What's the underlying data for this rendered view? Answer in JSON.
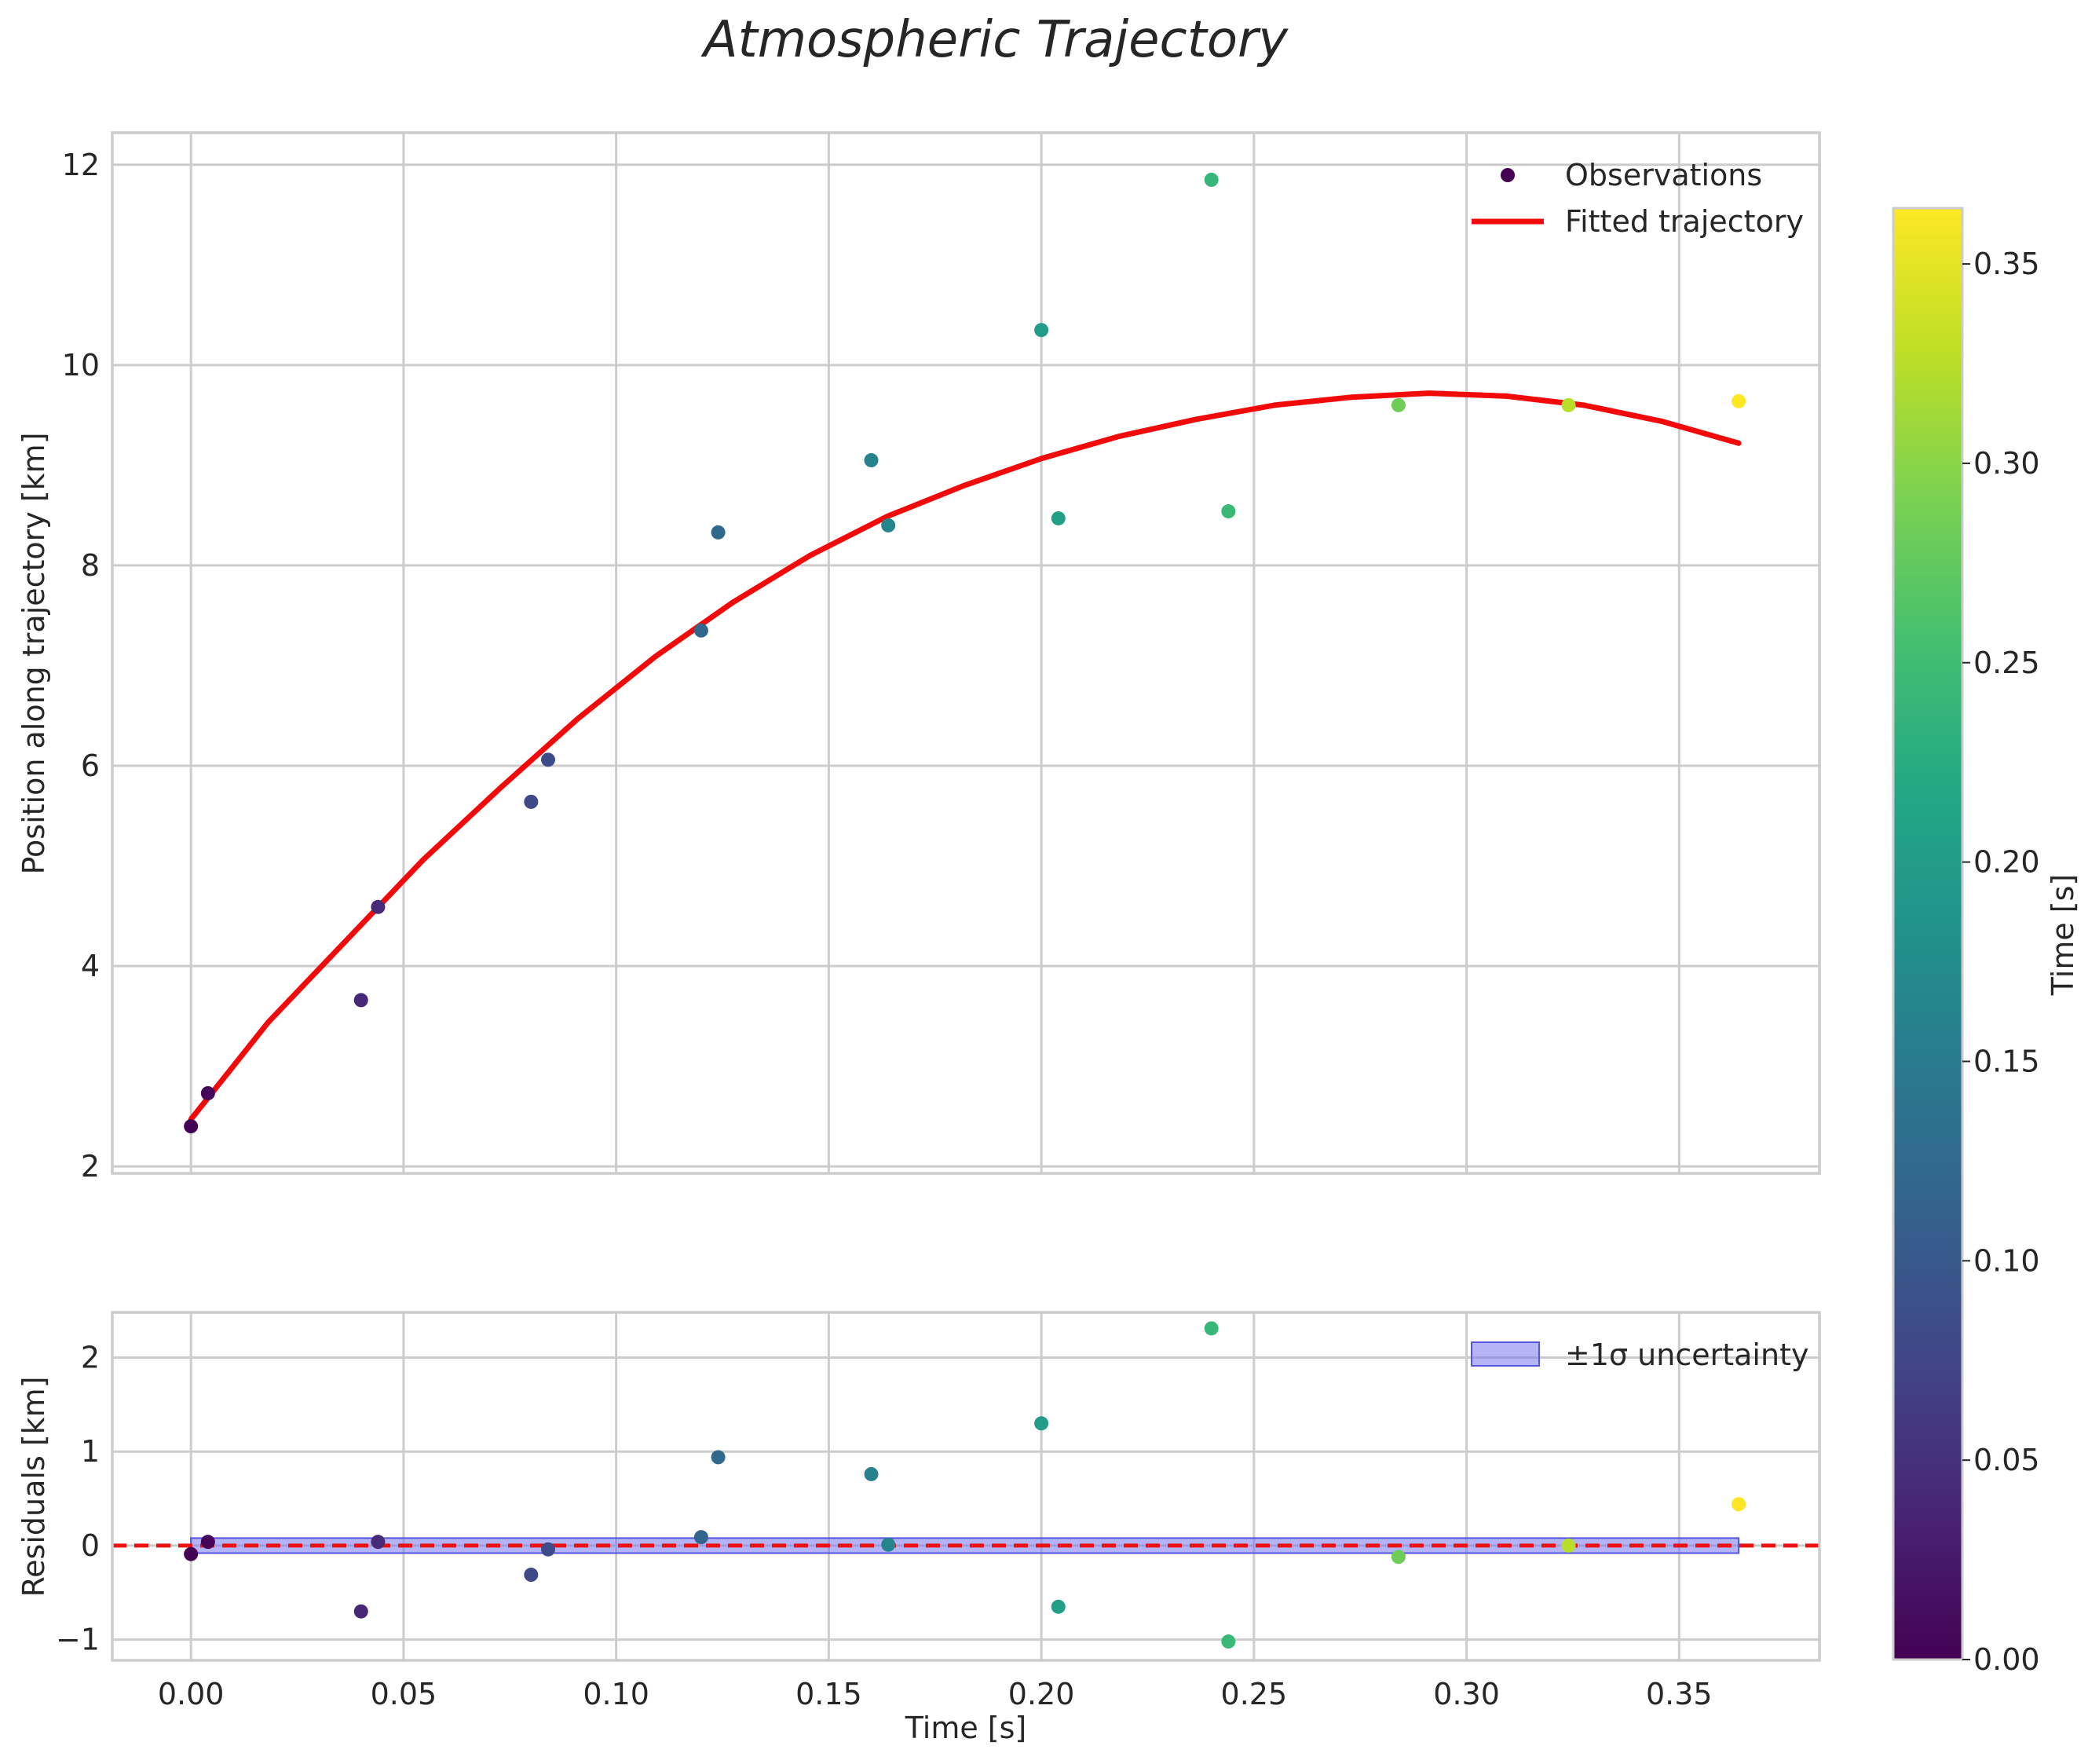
{
  "chart_data": [
    {
      "type": "scatter",
      "panel": "main",
      "title": "Atmospheric Trajectory",
      "xlabel": "",
      "ylabel": "Position along trajectory [km]",
      "xlim": [
        -0.0185,
        0.383
      ],
      "ylim": [
        1.93,
        12.32
      ],
      "xticks": [
        0.0,
        0.05,
        0.1,
        0.15,
        0.2,
        0.25,
        0.3,
        0.35
      ],
      "yticks": [
        2,
        4,
        6,
        8,
        10,
        12
      ],
      "ytick_labels": [
        "2",
        "4",
        "6",
        "8",
        "10",
        "12"
      ],
      "grid": true,
      "legend_position": "top-right",
      "series": [
        {
          "name": "Observations",
          "kind": "scatter",
          "colormapped_by": "time",
          "x": [
            0.0,
            0.004,
            0.04,
            0.044,
            0.08,
            0.084,
            0.12,
            0.124,
            0.16,
            0.164,
            0.2,
            0.204,
            0.24,
            0.244,
            0.284,
            0.324,
            0.364
          ],
          "y": [
            2.4,
            2.73,
            3.66,
            4.59,
            5.64,
            6.06,
            7.35,
            8.33,
            9.05,
            8.4,
            10.35,
            8.47,
            11.85,
            8.54,
            9.6,
            9.6,
            9.64
          ]
        },
        {
          "name": "Fitted trajectory",
          "kind": "line",
          "color": "#f20a0a",
          "x": [
            0.0,
            0.0182,
            0.0364,
            0.0546,
            0.0728,
            0.091,
            0.1092,
            0.1274,
            0.1456,
            0.1638,
            0.182,
            0.2002,
            0.2184,
            0.2366,
            0.2548,
            0.273,
            0.2912,
            0.3094,
            0.3276,
            0.3458,
            0.364
          ],
          "y": [
            2.47,
            3.44,
            4.25,
            5.06,
            5.78,
            6.47,
            7.09,
            7.63,
            8.1,
            8.49,
            8.8,
            9.07,
            9.29,
            9.46,
            9.6,
            9.68,
            9.72,
            9.69,
            9.6,
            9.44,
            9.22
          ]
        }
      ]
    },
    {
      "type": "scatter",
      "panel": "residuals",
      "xlabel": "Time [s]",
      "ylabel": "Residuals [km]",
      "xlim": [
        -0.0185,
        0.383
      ],
      "ylim": [
        -1.22,
        2.48
      ],
      "xticks": [
        0.0,
        0.05,
        0.1,
        0.15,
        0.2,
        0.25,
        0.3,
        0.35
      ],
      "xtick_labels": [
        "0.00",
        "0.05",
        "0.10",
        "0.15",
        "0.20",
        "0.25",
        "0.30",
        "0.35"
      ],
      "yticks": [
        -1,
        0,
        1,
        2
      ],
      "ytick_labels": [
        "−1",
        "0",
        "1",
        "2"
      ],
      "grid": true,
      "legend_position": "top-right",
      "reference_line": {
        "y": 0,
        "style": "dashed",
        "color": "#ee1111"
      },
      "uncertainty_band": {
        "name": "±1σ uncertainty",
        "color": "#7777ee",
        "sigma": 0.08
      },
      "series": [
        {
          "name": "Residuals",
          "kind": "scatter",
          "colormapped_by": "time",
          "x": [
            0.0,
            0.004,
            0.04,
            0.044,
            0.08,
            0.084,
            0.12,
            0.124,
            0.16,
            0.164,
            0.2,
            0.204,
            0.24,
            0.244,
            0.284,
            0.324,
            0.364
          ],
          "y": [
            -0.09,
            0.04,
            -0.7,
            0.04,
            -0.31,
            -0.04,
            0.09,
            0.94,
            0.76,
            0.01,
            1.3,
            -0.65,
            2.31,
            -1.02,
            -0.12,
            0.0,
            0.44
          ]
        }
      ]
    },
    {
      "type": "colorbar",
      "label": "Time [s]",
      "colormap": "viridis",
      "range": [
        0.0,
        0.364
      ],
      "ticks": [
        0.0,
        0.05,
        0.1,
        0.15,
        0.2,
        0.25,
        0.3,
        0.35
      ],
      "tick_labels": [
        "0.00",
        "0.05",
        "0.10",
        "0.15",
        "0.20",
        "0.25",
        "0.30",
        "0.35"
      ]
    }
  ]
}
